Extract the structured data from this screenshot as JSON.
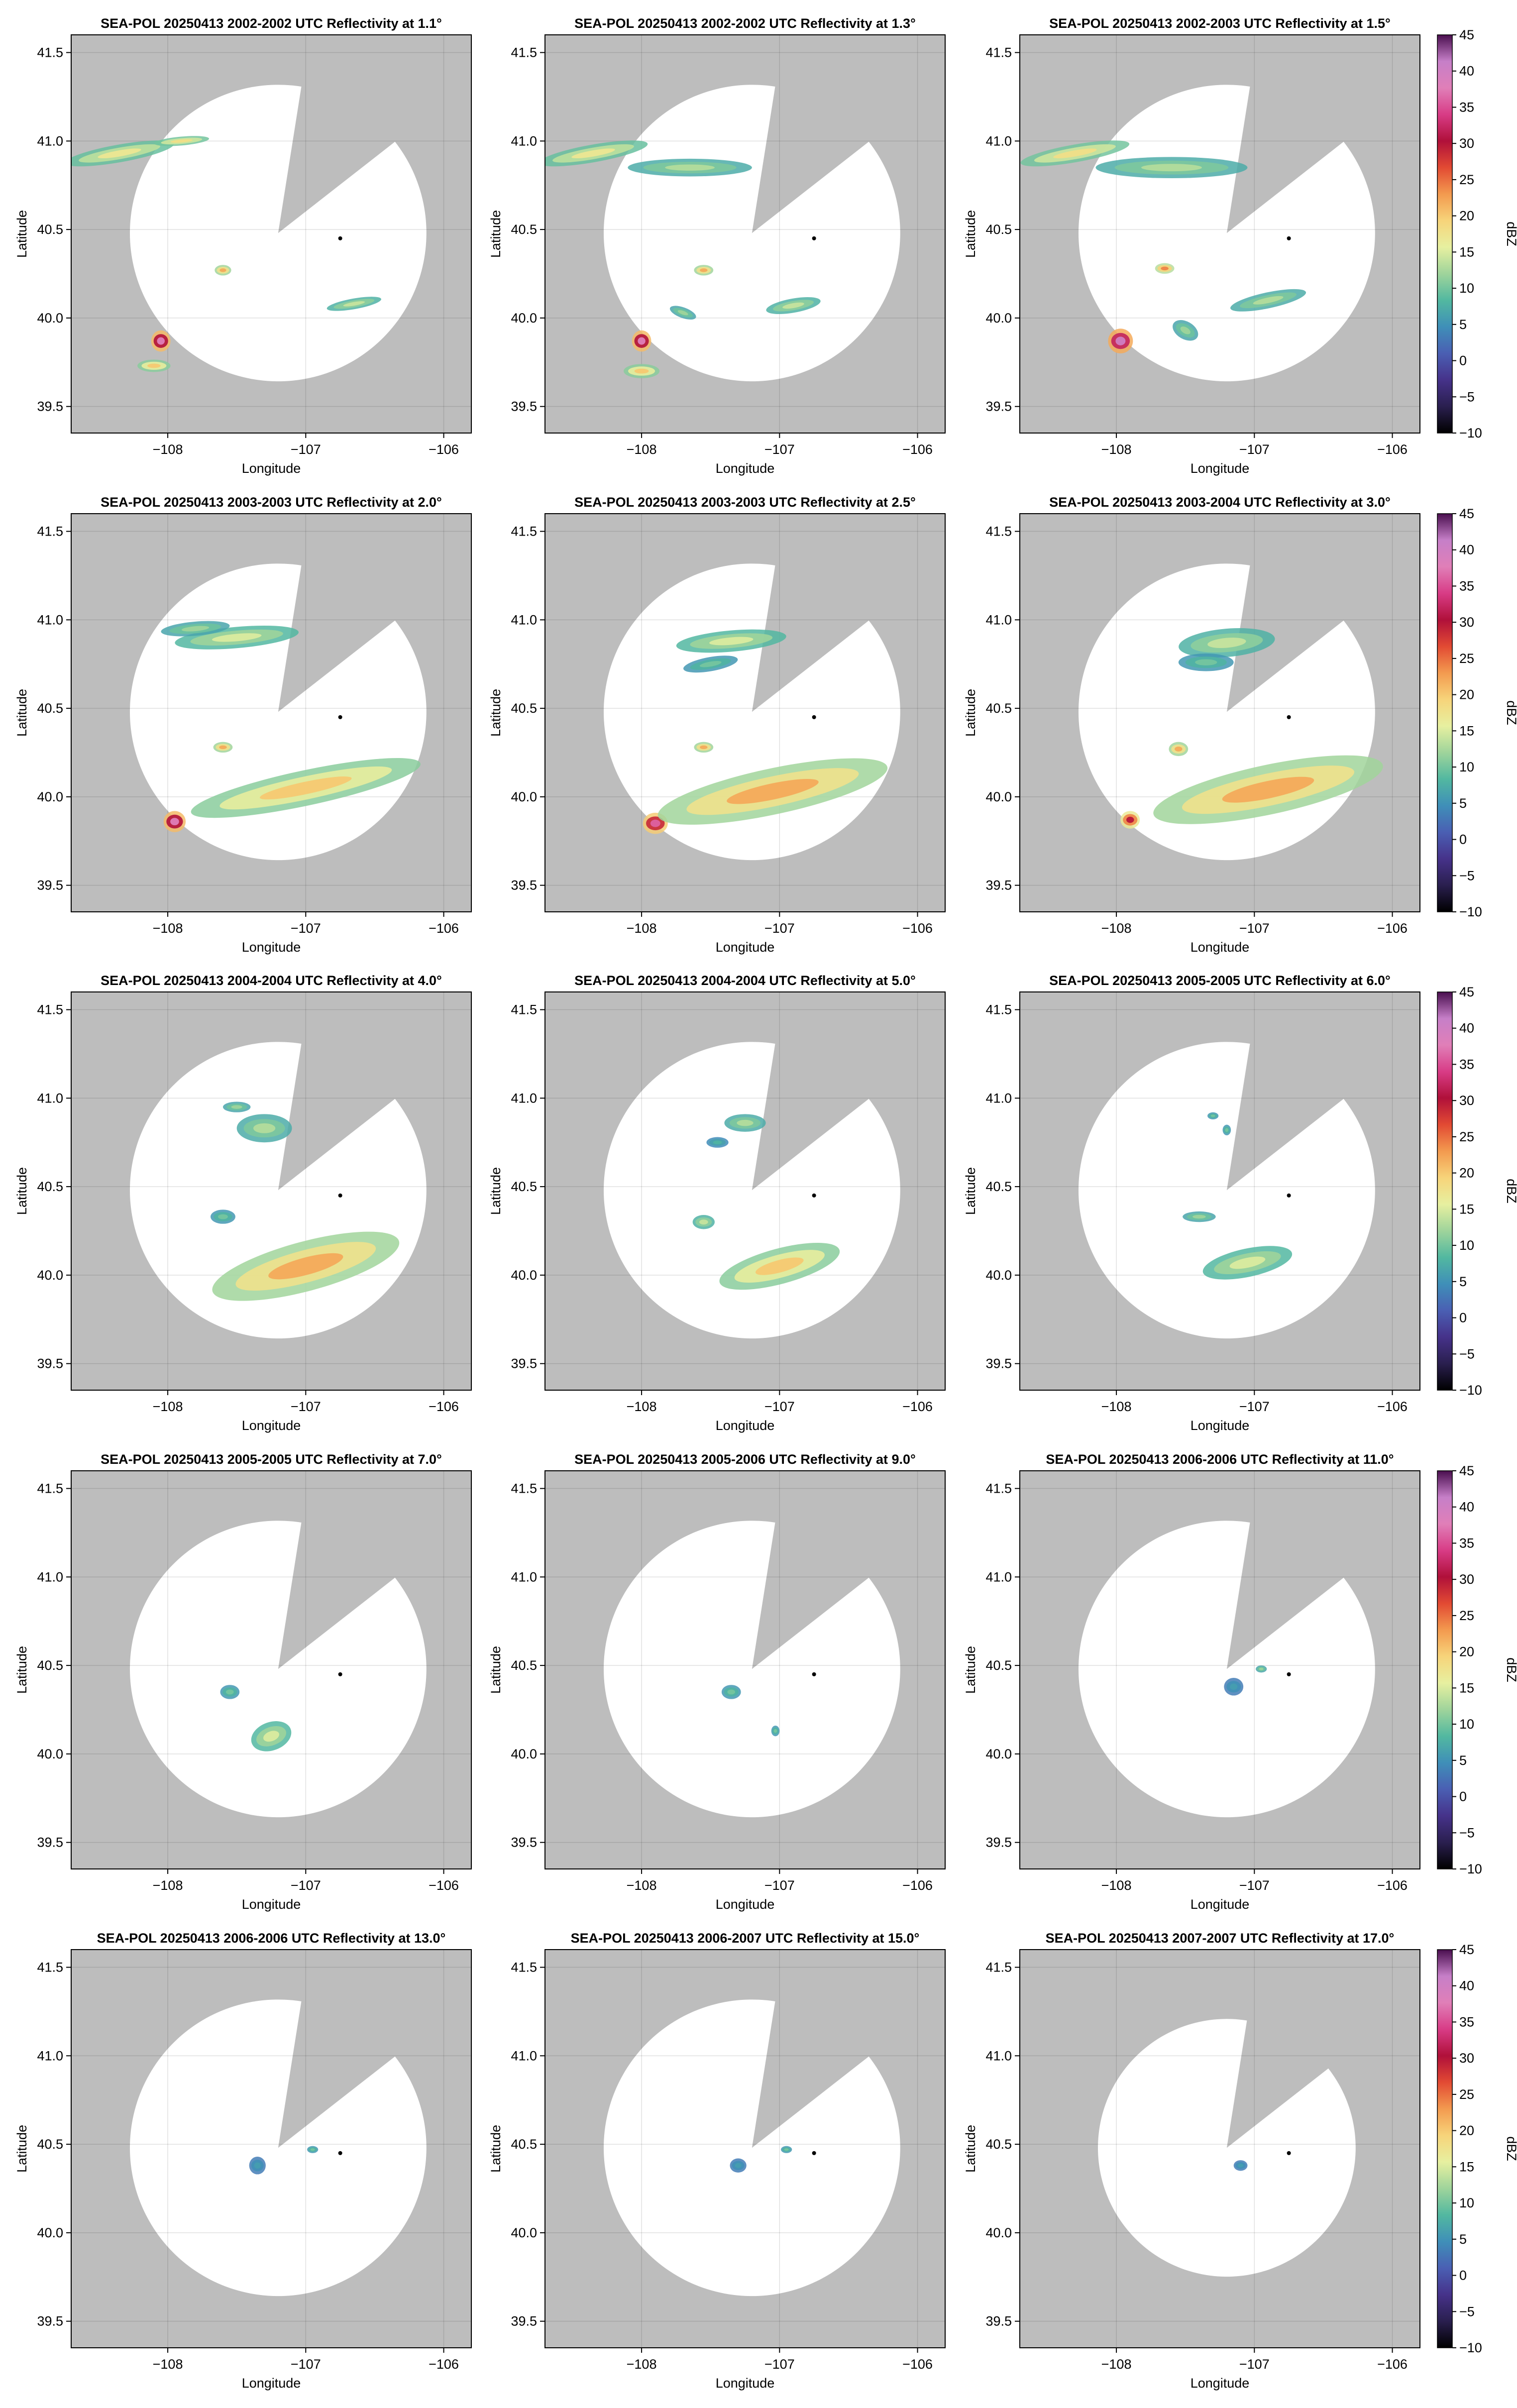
{
  "figure": {
    "xlabel": "Longitude",
    "ylabel": "Latitude",
    "colorbar_label": "dBZ",
    "colorbar_ticks": [
      -10,
      -5,
      0,
      5,
      10,
      15,
      20,
      25,
      30,
      35,
      40,
      45
    ],
    "colorbar_range": [
      -10,
      45
    ],
    "colormap": [
      "#000000",
      "#2a1f4f",
      "#46328a",
      "#4a5fb3",
      "#3f8fb8",
      "#52b8a0",
      "#9fd49b",
      "#e7f0a0",
      "#f7d47a",
      "#f39a4f",
      "#e24a33",
      "#b0103a",
      "#d83c86",
      "#e07fb8",
      "#c67fc8",
      "#4a0f4f"
    ],
    "background_color": "#bdbdbd",
    "radar_coverage_color": "#ffffff",
    "radar_site_marker": {
      "lon": -106.75,
      "lat": 40.45
    }
  },
  "chart_data": [
    {
      "type": "heatmap",
      "title": "SEA-POL 20250413 2002-2002 UTC Reflectivity at 1.1°",
      "xlabel": "Longitude",
      "ylabel": "Latitude",
      "xlim": [
        -108.7,
        -105.8
      ],
      "ylim": [
        39.35,
        41.6
      ],
      "xticks": [
        -108,
        -107,
        -106
      ],
      "yticks": [
        39.5,
        40.0,
        40.5,
        41.0,
        41.5
      ],
      "grid": true,
      "colorbar": false
    },
    {
      "type": "heatmap",
      "title": "SEA-POL 20250413 2002-2002 UTC Reflectivity at 1.3°",
      "xlabel": "Longitude",
      "ylabel": "Latitude",
      "xlim": [
        -108.7,
        -105.8
      ],
      "ylim": [
        39.35,
        41.6
      ],
      "xticks": [
        -108,
        -107,
        -106
      ],
      "yticks": [
        39.5,
        40.0,
        40.5,
        41.0,
        41.5
      ],
      "grid": true,
      "colorbar": false
    },
    {
      "type": "heatmap",
      "title": "SEA-POL 20250413 2002-2003 UTC Reflectivity at 1.5°",
      "xlabel": "Longitude",
      "ylabel": "Latitude",
      "xlim": [
        -108.7,
        -105.8
      ],
      "ylim": [
        39.35,
        41.6
      ],
      "xticks": [
        -108,
        -107,
        -106
      ],
      "yticks": [
        39.5,
        40.0,
        40.5,
        41.0,
        41.5
      ],
      "grid": true,
      "colorbar": true
    },
    {
      "type": "heatmap",
      "title": "SEA-POL 20250413 2003-2003 UTC Reflectivity at 2.0°",
      "xlabel": "Longitude",
      "ylabel": "Latitude",
      "xlim": [
        -108.7,
        -105.8
      ],
      "ylim": [
        39.35,
        41.6
      ],
      "xticks": [
        -108,
        -107,
        -106
      ],
      "yticks": [
        39.5,
        40.0,
        40.5,
        41.0,
        41.5
      ],
      "grid": true,
      "colorbar": false
    },
    {
      "type": "heatmap",
      "title": "SEA-POL 20250413 2003-2003 UTC Reflectivity at 2.5°",
      "xlabel": "Longitude",
      "ylabel": "Latitude",
      "xlim": [
        -108.7,
        -105.8
      ],
      "ylim": [
        39.35,
        41.6
      ],
      "xticks": [
        -108,
        -107,
        -106
      ],
      "yticks": [
        39.5,
        40.0,
        40.5,
        41.0,
        41.5
      ],
      "grid": true,
      "colorbar": false
    },
    {
      "type": "heatmap",
      "title": "SEA-POL 20250413 2003-2004 UTC Reflectivity at 3.0°",
      "xlabel": "Longitude",
      "ylabel": "Latitude",
      "xlim": [
        -108.7,
        -105.8
      ],
      "ylim": [
        39.35,
        41.6
      ],
      "xticks": [
        -108,
        -107,
        -106
      ],
      "yticks": [
        39.5,
        40.0,
        40.5,
        41.0,
        41.5
      ],
      "grid": true,
      "colorbar": true
    },
    {
      "type": "heatmap",
      "title": "SEA-POL 20250413 2004-2004 UTC Reflectivity at 4.0°",
      "xlabel": "Longitude",
      "ylabel": "Latitude",
      "xlim": [
        -108.7,
        -105.8
      ],
      "ylim": [
        39.35,
        41.6
      ],
      "xticks": [
        -108,
        -107,
        -106
      ],
      "yticks": [
        39.5,
        40.0,
        40.5,
        41.0,
        41.5
      ],
      "grid": true,
      "colorbar": false
    },
    {
      "type": "heatmap",
      "title": "SEA-POL 20250413 2004-2004 UTC Reflectivity at 5.0°",
      "xlabel": "Longitude",
      "ylabel": "Latitude",
      "xlim": [
        -108.7,
        -105.8
      ],
      "ylim": [
        39.35,
        41.6
      ],
      "xticks": [
        -108,
        -107,
        -106
      ],
      "yticks": [
        39.5,
        40.0,
        40.5,
        41.0,
        41.5
      ],
      "grid": true,
      "colorbar": false
    },
    {
      "type": "heatmap",
      "title": "SEA-POL 20250413 2005-2005 UTC Reflectivity at 6.0°",
      "xlabel": "Longitude",
      "ylabel": "Latitude",
      "xlim": [
        -108.7,
        -105.8
      ],
      "ylim": [
        39.35,
        41.6
      ],
      "xticks": [
        -108,
        -107,
        -106
      ],
      "yticks": [
        39.5,
        40.0,
        40.5,
        41.0,
        41.5
      ],
      "grid": true,
      "colorbar": true
    },
    {
      "type": "heatmap",
      "title": "SEA-POL 20250413 2005-2005 UTC Reflectivity at 7.0°",
      "xlabel": "Longitude",
      "ylabel": "Latitude",
      "xlim": [
        -108.7,
        -105.8
      ],
      "ylim": [
        39.35,
        41.6
      ],
      "xticks": [
        -108,
        -107,
        -106
      ],
      "yticks": [
        39.5,
        40.0,
        40.5,
        41.0,
        41.5
      ],
      "grid": true,
      "colorbar": false
    },
    {
      "type": "heatmap",
      "title": "SEA-POL 20250413 2005-2006 UTC Reflectivity at 9.0°",
      "xlabel": "Longitude",
      "ylabel": "Latitude",
      "xlim": [
        -108.7,
        -105.8
      ],
      "ylim": [
        39.35,
        41.6
      ],
      "xticks": [
        -108,
        -107,
        -106
      ],
      "yticks": [
        39.5,
        40.0,
        40.5,
        41.0,
        41.5
      ],
      "grid": true,
      "colorbar": false
    },
    {
      "type": "heatmap",
      "title": "SEA-POL 20250413 2006-2006 UTC Reflectivity at 11.0°",
      "xlabel": "Longitude",
      "ylabel": "Latitude",
      "xlim": [
        -108.7,
        -105.8
      ],
      "ylim": [
        39.35,
        41.6
      ],
      "xticks": [
        -108,
        -107,
        -106
      ],
      "yticks": [
        39.5,
        40.0,
        40.5,
        41.0,
        41.5
      ],
      "grid": true,
      "colorbar": true
    },
    {
      "type": "heatmap",
      "title": "SEA-POL 20250413 2006-2006 UTC Reflectivity at 13.0°",
      "xlabel": "Longitude",
      "ylabel": "Latitude",
      "xlim": [
        -108.7,
        -105.8
      ],
      "ylim": [
        39.35,
        41.6
      ],
      "xticks": [
        -108,
        -107,
        -106
      ],
      "yticks": [
        39.5,
        40.0,
        40.5,
        41.0,
        41.5
      ],
      "grid": true,
      "colorbar": false
    },
    {
      "type": "heatmap",
      "title": "SEA-POL 20250413 2006-2007 UTC Reflectivity at 15.0°",
      "xlabel": "Longitude",
      "ylabel": "Latitude",
      "xlim": [
        -108.7,
        -105.8
      ],
      "ylim": [
        39.35,
        41.6
      ],
      "xticks": [
        -108,
        -107,
        -106
      ],
      "yticks": [
        39.5,
        40.0,
        40.5,
        41.0,
        41.5
      ],
      "grid": true,
      "colorbar": false
    },
    {
      "type": "heatmap",
      "title": "SEA-POL 20250413 2007-2007 UTC Reflectivity at 17.0°",
      "xlabel": "Longitude",
      "ylabel": "Latitude",
      "xlim": [
        -108.7,
        -105.8
      ],
      "ylim": [
        39.35,
        41.6
      ],
      "xticks": [
        -108,
        -107,
        -106
      ],
      "yticks": [
        39.5,
        40.0,
        40.5,
        41.0,
        41.5
      ],
      "grid": true,
      "colorbar": true
    }
  ]
}
